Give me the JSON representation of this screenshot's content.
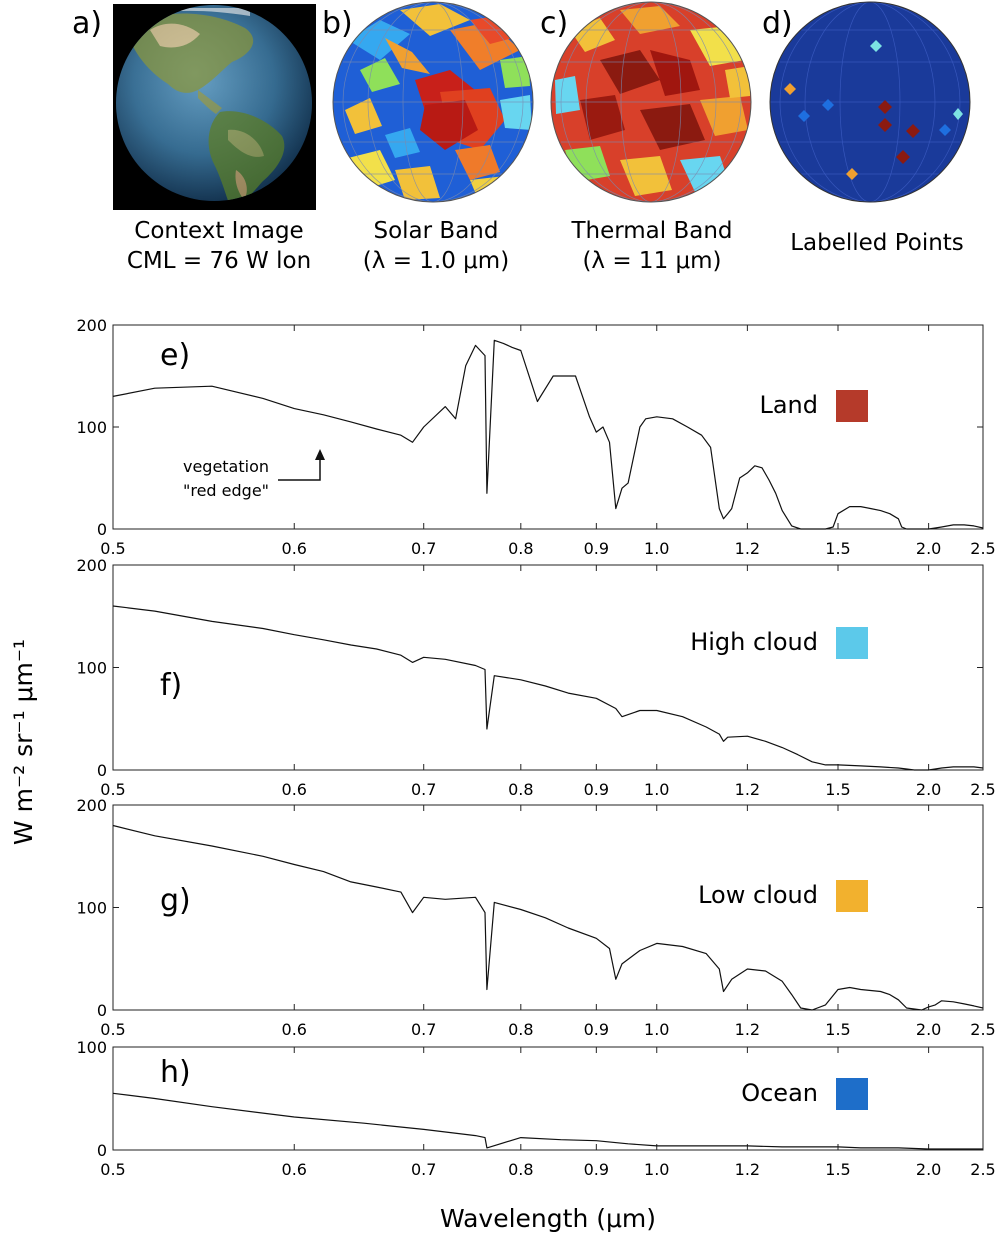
{
  "panels_top": [
    {
      "letter": "a)",
      "caption1": "Context Image",
      "caption2": "CML = 76 W lon"
    },
    {
      "letter": "b)",
      "caption1": "Solar Band",
      "caption2": "(λ = 1.0 μm)"
    },
    {
      "letter": "c)",
      "caption1": "Thermal Band",
      "caption2": "(λ = 11 μm)"
    },
    {
      "letter": "d)",
      "caption1": "Labelled Points",
      "caption2": ""
    }
  ],
  "labelled_point_colors": {
    "land": "#8b1a10",
    "high_cloud": "#7de3e3",
    "low_cloud": "#f0a030",
    "ocean": "#1e6fe0",
    "globe": "#1a3a9a"
  },
  "ylabel": "W m⁻² sr⁻¹ μm⁻¹",
  "xlabel": "Wavelength (μm)",
  "annotation": {
    "line1": "vegetation",
    "line2": "\"red edge\""
  },
  "chart_data": [
    {
      "type": "line",
      "letter": "e)",
      "label": "Land",
      "color": "#b53a2a",
      "xlim": [
        0.5,
        2.5
      ],
      "ylim": [
        0,
        200
      ],
      "yticks": [
        0,
        100,
        200
      ],
      "xticks": [
        "0.5",
        "0.6",
        "0.7",
        "0.8",
        "0.9",
        "1.0",
        "1.2",
        "1.5",
        "2.0",
        "2.5"
      ],
      "x": [
        0.5,
        0.52,
        0.55,
        0.58,
        0.6,
        0.62,
        0.64,
        0.66,
        0.68,
        0.69,
        0.7,
        0.72,
        0.73,
        0.74,
        0.75,
        0.76,
        0.762,
        0.77,
        0.78,
        0.79,
        0.8,
        0.82,
        0.84,
        0.87,
        0.89,
        0.9,
        0.91,
        0.92,
        0.93,
        0.94,
        0.95,
        0.97,
        0.98,
        1.0,
        1.03,
        1.06,
        1.09,
        1.11,
        1.13,
        1.14,
        1.15,
        1.16,
        1.18,
        1.2,
        1.22,
        1.24,
        1.26,
        1.28,
        1.3,
        1.33,
        1.36,
        1.4,
        1.45,
        1.48,
        1.5,
        1.55,
        1.6,
        1.65,
        1.7,
        1.75,
        1.8,
        1.82,
        1.85,
        1.9,
        1.95,
        2.0,
        2.05,
        2.1,
        2.2,
        2.3,
        2.4,
        2.5
      ],
      "y": [
        130,
        138,
        140,
        128,
        118,
        112,
        105,
        98,
        92,
        85,
        100,
        120,
        108,
        160,
        180,
        170,
        35,
        185,
        182,
        178,
        175,
        125,
        150,
        150,
        110,
        95,
        100,
        85,
        20,
        40,
        45,
        100,
        108,
        110,
        108,
        100,
        92,
        80,
        20,
        10,
        15,
        20,
        50,
        55,
        62,
        60,
        48,
        35,
        18,
        3,
        0,
        0,
        0,
        2,
        15,
        22,
        22,
        20,
        18,
        15,
        10,
        2,
        0,
        0,
        0,
        0,
        1,
        2,
        4,
        4,
        3,
        1
      ]
    },
    {
      "type": "line",
      "letter": "f)",
      "label": "High cloud",
      "color": "#5cc9ea",
      "xlim": [
        0.5,
        2.5
      ],
      "ylim": [
        0,
        200
      ],
      "yticks": [
        0,
        100,
        200
      ],
      "xticks": [
        "0.5",
        "0.6",
        "0.7",
        "0.8",
        "0.9",
        "1.0",
        "1.2",
        "1.5",
        "2.0",
        "2.5"
      ],
      "x": [
        0.5,
        0.52,
        0.55,
        0.58,
        0.6,
        0.62,
        0.64,
        0.66,
        0.68,
        0.69,
        0.7,
        0.72,
        0.75,
        0.76,
        0.762,
        0.77,
        0.8,
        0.83,
        0.86,
        0.9,
        0.93,
        0.94,
        0.97,
        1.0,
        1.05,
        1.1,
        1.13,
        1.14,
        1.15,
        1.2,
        1.25,
        1.3,
        1.35,
        1.4,
        1.45,
        1.5,
        1.6,
        1.7,
        1.8,
        1.85,
        1.9,
        2.0,
        2.1,
        2.2,
        2.3,
        2.4,
        2.5
      ],
      "y": [
        160,
        155,
        145,
        138,
        132,
        127,
        122,
        118,
        112,
        105,
        110,
        108,
        102,
        98,
        40,
        92,
        88,
        82,
        75,
        70,
        60,
        52,
        58,
        58,
        52,
        42,
        35,
        28,
        32,
        33,
        28,
        22,
        15,
        8,
        5,
        5,
        4,
        3,
        2,
        1,
        0,
        0,
        2,
        3,
        3,
        3,
        2
      ]
    },
    {
      "type": "line",
      "letter": "g)",
      "label": "Low cloud",
      "color": "#f2b12e",
      "xlim": [
        0.5,
        2.5
      ],
      "ylim": [
        0,
        200
      ],
      "yticks": [
        0,
        100,
        200
      ],
      "xticks": [
        "0.5",
        "0.6",
        "0.7",
        "0.8",
        "0.9",
        "1.0",
        "1.2",
        "1.5",
        "2.0",
        "2.5"
      ],
      "x": [
        0.5,
        0.52,
        0.55,
        0.58,
        0.6,
        0.62,
        0.64,
        0.66,
        0.68,
        0.69,
        0.7,
        0.72,
        0.75,
        0.76,
        0.762,
        0.77,
        0.8,
        0.83,
        0.86,
        0.9,
        0.92,
        0.93,
        0.94,
        0.97,
        1.0,
        1.05,
        1.1,
        1.13,
        1.14,
        1.16,
        1.2,
        1.25,
        1.3,
        1.33,
        1.36,
        1.4,
        1.45,
        1.5,
        1.55,
        1.6,
        1.7,
        1.75,
        1.8,
        1.85,
        1.95,
        2.0,
        2.05,
        2.1,
        2.2,
        2.3,
        2.4,
        2.5
      ],
      "y": [
        180,
        170,
        160,
        150,
        142,
        135,
        125,
        120,
        115,
        95,
        110,
        108,
        110,
        95,
        20,
        105,
        98,
        90,
        80,
        70,
        60,
        30,
        45,
        58,
        65,
        62,
        55,
        40,
        18,
        30,
        40,
        38,
        28,
        15,
        2,
        0,
        5,
        20,
        22,
        20,
        18,
        15,
        10,
        2,
        0,
        3,
        5,
        9,
        8,
        6,
        4,
        2
      ]
    },
    {
      "type": "line",
      "letter": "h)",
      "label": "Ocean",
      "color": "#1e6ec9",
      "xlim": [
        0.5,
        2.5
      ],
      "ylim": [
        0,
        100
      ],
      "yticks": [
        0,
        100
      ],
      "xticks": [
        "0.5",
        "0.6",
        "0.7",
        "0.8",
        "0.9",
        "1.0",
        "1.2",
        "1.5",
        "2.0",
        "2.5"
      ],
      "x": [
        0.5,
        0.52,
        0.55,
        0.6,
        0.65,
        0.7,
        0.75,
        0.76,
        0.762,
        0.8,
        0.85,
        0.9,
        0.95,
        1.0,
        1.1,
        1.2,
        1.3,
        1.4,
        1.5,
        1.6,
        1.8,
        2.0,
        2.2,
        2.5
      ],
      "y": [
        55,
        50,
        42,
        32,
        26,
        20,
        14,
        12,
        2,
        12,
        10,
        9,
        6,
        4,
        4,
        4,
        3,
        3,
        3,
        2,
        2,
        1,
        1,
        1
      ]
    }
  ]
}
